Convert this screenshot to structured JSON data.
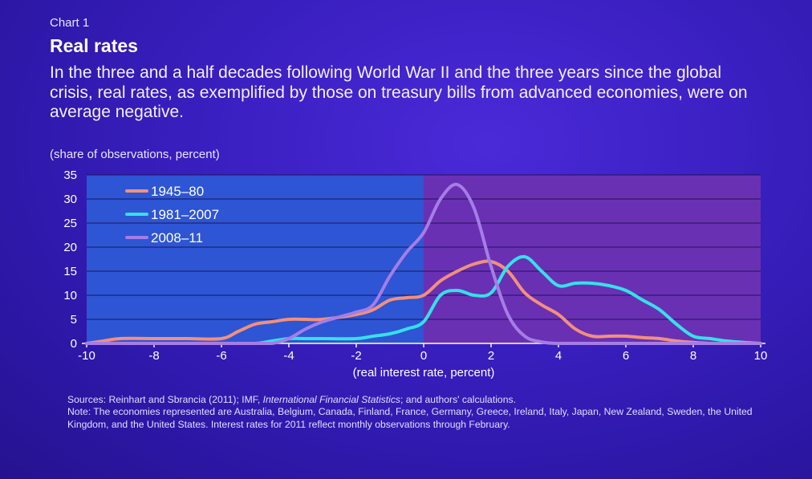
{
  "header": {
    "label": "Chart 1",
    "title": "Real rates",
    "subtitle": "In the three and a half decades following World War II and the three years since the global crisis, real rates, as exemplified by those on treasury bills from advanced economies, were on average negative.",
    "unit": "(share of observations, percent)"
  },
  "chart_data": {
    "type": "line",
    "title": "Real rates",
    "xlabel": "(real interest rate, percent)",
    "ylabel": "(share of observations, percent)",
    "xlim": [
      -10,
      10
    ],
    "ylim": [
      0,
      35
    ],
    "xticks": [
      -10,
      -8,
      -6,
      -4,
      -2,
      0,
      2,
      4,
      6,
      8,
      10
    ],
    "xtick_labels": [
      "-10",
      "-8",
      "-6",
      "-4",
      "-2",
      "0",
      "2",
      "4",
      "6",
      "8",
      "10"
    ],
    "yticks": [
      0,
      5,
      10,
      15,
      20,
      25,
      30,
      35
    ],
    "ytick_labels": [
      "0",
      "5",
      "10",
      "15",
      "20",
      "25",
      "30",
      "35"
    ],
    "grid": "horizontal",
    "legend_position": "top-left",
    "shaded_regions": [
      {
        "from": -10,
        "to": 0,
        "color": "#2e55d4"
      },
      {
        "from": 0,
        "to": 10,
        "color": "#6a30b4"
      }
    ],
    "series": [
      {
        "name": "1945–80",
        "color": "#f2907c",
        "x": [
          -10,
          -9.5,
          -9,
          -8,
          -7,
          -6,
          -5.5,
          -5,
          -4.5,
          -4,
          -3.5,
          -3,
          -2,
          -1.5,
          -1,
          -0.5,
          0,
          0.5,
          1,
          1.5,
          2,
          2.5,
          3,
          3.5,
          4,
          4.5,
          5,
          5.5,
          6,
          6.5,
          7,
          7.5,
          8,
          8.5,
          9,
          9.5,
          10
        ],
        "y": [
          0,
          0.5,
          1,
          1,
          1,
          1,
          2.5,
          4,
          4.5,
          5,
          5,
          5,
          6,
          7,
          9,
          9.5,
          10,
          13,
          15,
          16.5,
          17,
          15,
          10.5,
          8,
          6,
          3,
          1.5,
          1.5,
          1.5,
          1.2,
          1,
          0.5,
          0.2,
          0,
          0,
          0,
          0
        ]
      },
      {
        "name": "1981–2007",
        "color": "#36e0e8",
        "x": [
          -10,
          -8,
          -6,
          -5,
          -4.5,
          -4,
          -3.5,
          -3,
          -2,
          -1.5,
          -1,
          -0.5,
          0,
          0.5,
          1,
          1.5,
          2,
          2.5,
          3,
          3.5,
          4,
          4.5,
          5,
          5.5,
          6,
          6.5,
          7,
          7.5,
          8,
          8.5,
          9,
          9.5,
          10
        ],
        "y": [
          0,
          0,
          0,
          0,
          0.5,
          1,
          1,
          1,
          1,
          1.5,
          2,
          3,
          4.5,
          10,
          11,
          10,
          10.5,
          16,
          18,
          15,
          12,
          12.5,
          12.5,
          12,
          11,
          9,
          7,
          4,
          1.5,
          1,
          0.5,
          0.2,
          0
        ]
      },
      {
        "name": "2008–11",
        "color": "#a57de6",
        "x": [
          -10,
          -6,
          -5,
          -4.5,
          -4,
          -3.5,
          -3,
          -2.5,
          -2,
          -1.5,
          -1,
          -0.5,
          0,
          0.5,
          1,
          1.5,
          2,
          2.5,
          3,
          3.5,
          4,
          5,
          6,
          8,
          10
        ],
        "y": [
          0,
          0,
          0,
          0,
          1,
          3,
          4.5,
          5.5,
          6.5,
          8,
          14,
          19,
          23,
          30,
          33,
          28,
          16,
          6,
          1.5,
          0.3,
          0,
          0,
          0,
          0,
          0
        ]
      }
    ]
  },
  "notes": {
    "sources_prefix": "Sources: Reinhart and Sbrancia (2011); IMF, ",
    "sources_italic": "International Financial Statistics",
    "sources_suffix": "; and authors' calculations.",
    "note": "Note: The economies represented are Australia, Belgium, Canada, Finland, France, Germany, Greece, Ireland, Italy, Japan, New Zealand, Sweden, the United Kingdom, and the United States. Interest rates for 2011 reflect monthly observations through February."
  }
}
